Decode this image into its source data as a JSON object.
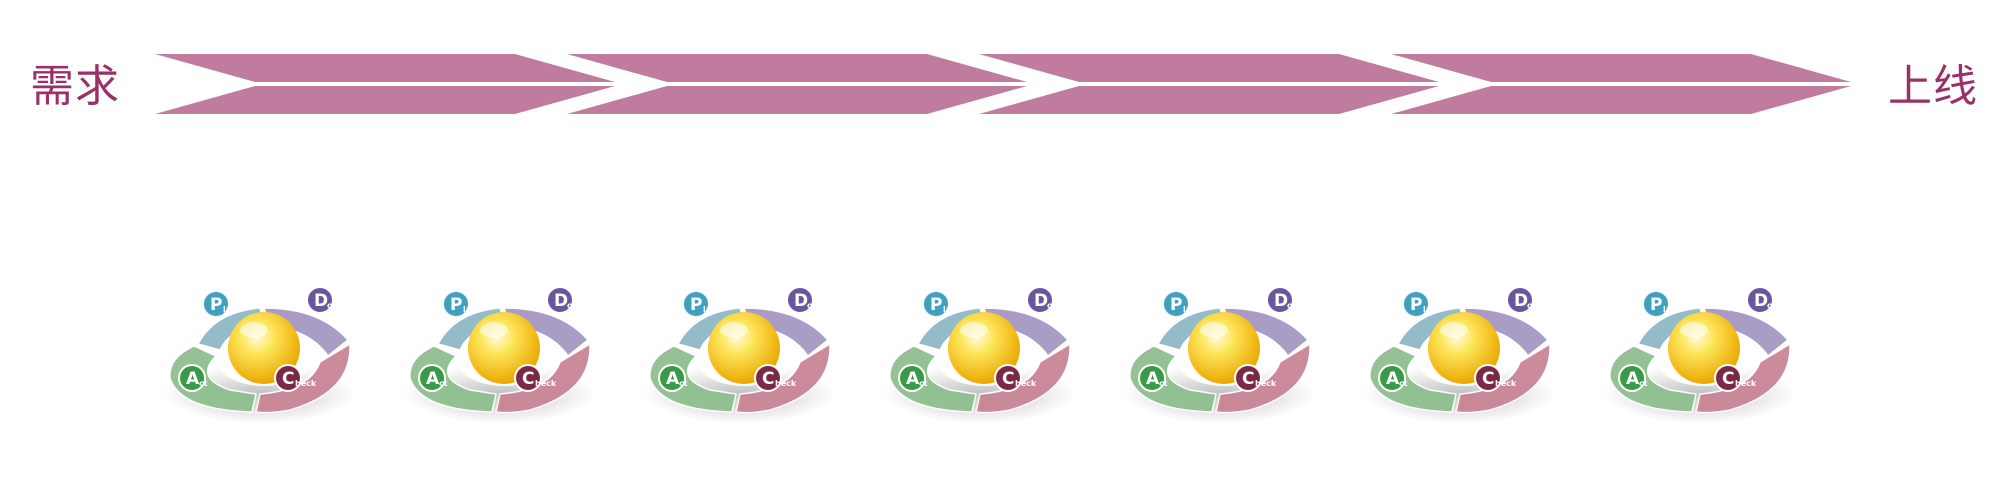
{
  "labels": {
    "start": "需求",
    "end": "上线"
  },
  "colors": {
    "arrow": "#bf7c9f",
    "label": "#9b2f6a",
    "plan": "#8fb8c8",
    "do": "#a598c4",
    "check": "#c98597",
    "act": "#8fbf8f",
    "plan_badge": "#3fa0c0",
    "do_badge": "#6a55a2",
    "check_badge": "#7a2a44",
    "act_badge": "#3a9a4a",
    "sphere": "#f5c400"
  },
  "timeline": {
    "arrow_count": 4
  },
  "pdca": {
    "cycle_count": 7,
    "steps": [
      {
        "key": "plan",
        "letter": "P",
        "rest": "lan"
      },
      {
        "key": "do",
        "letter": "D",
        "rest": "o"
      },
      {
        "key": "check",
        "letter": "C",
        "rest": "heck"
      },
      {
        "key": "act",
        "letter": "A",
        "rest": "ct"
      }
    ]
  }
}
